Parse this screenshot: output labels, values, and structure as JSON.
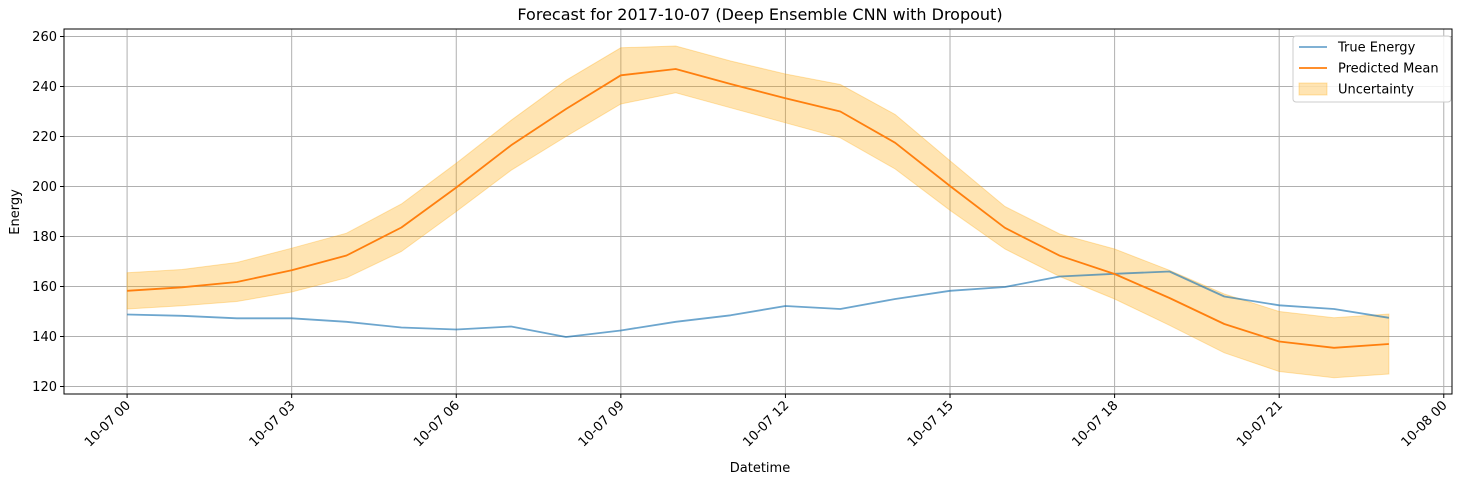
{
  "chart_data": {
    "type": "line",
    "title": "Forecast for 2017-10-07 (Deep Ensemble CNN with Dropout)",
    "xlabel": "Datetime",
    "ylabel": "Energy",
    "x": [
      "2017-10-07 00:00",
      "2017-10-07 01:00",
      "2017-10-07 02:00",
      "2017-10-07 03:00",
      "2017-10-07 04:00",
      "2017-10-07 05:00",
      "2017-10-07 06:00",
      "2017-10-07 07:00",
      "2017-10-07 08:00",
      "2017-10-07 09:00",
      "2017-10-07 10:00",
      "2017-10-07 11:00",
      "2017-10-07 12:00",
      "2017-10-07 13:00",
      "2017-10-07 14:00",
      "2017-10-07 15:00",
      "2017-10-07 16:00",
      "2017-10-07 17:00",
      "2017-10-07 18:00",
      "2017-10-07 19:00",
      "2017-10-07 20:00",
      "2017-10-07 21:00",
      "2017-10-07 22:00",
      "2017-10-07 23:00"
    ],
    "xlim": [
      "2017-10-06 22:51",
      "2017-10-08 00:09"
    ],
    "x_ticks": [
      "10-07 00",
      "10-07 03",
      "10-07 06",
      "10-07 09",
      "10-07 12",
      "10-07 15",
      "10-07 18",
      "10-07 21",
      "10-08 00"
    ],
    "ylim": [
      117,
      263
    ],
    "y_ticks": [
      120,
      140,
      160,
      180,
      200,
      220,
      240,
      260
    ],
    "grid": true,
    "legend_position": "upper-right",
    "series": [
      {
        "name": "True Energy",
        "kind": "line",
        "color": "#1f77b4",
        "values": [
          148.8,
          148.3,
          147.3,
          147.3,
          145.9,
          143.6,
          142.8,
          144.0,
          139.8,
          142.4,
          145.9,
          148.5,
          152.2,
          151.0,
          155.0,
          158.3,
          159.8,
          164.0,
          165.1,
          166.0,
          156.0,
          152.5,
          151.0,
          147.5
        ]
      },
      {
        "name": "Predicted Mean",
        "kind": "line",
        "color": "#ff7f0e",
        "values": [
          158.3,
          159.7,
          161.8,
          166.5,
          172.4,
          183.6,
          199.6,
          216.5,
          231.0,
          244.5,
          247.0,
          241.0,
          235.3,
          230.0,
          217.5,
          200.2,
          183.5,
          172.3,
          165.0,
          155.4,
          145.0,
          138.0,
          135.5,
          137.0
        ]
      },
      {
        "name": "Uncertainty",
        "kind": "band",
        "color": "#ffa500",
        "lower": [
          151.0,
          152.3,
          154.0,
          157.8,
          163.5,
          174.0,
          190.0,
          206.5,
          220.0,
          233.0,
          237.5,
          231.5,
          225.5,
          219.5,
          207.0,
          190.5,
          175.0,
          164.0,
          155.0,
          144.5,
          133.5,
          126.0,
          123.5,
          125.0
        ],
        "upper": [
          165.5,
          166.8,
          169.6,
          175.3,
          181.3,
          193.0,
          209.3,
          226.5,
          242.5,
          255.5,
          256.2,
          250.2,
          245.0,
          240.8,
          228.8,
          210.3,
          192.0,
          181.0,
          175.0,
          166.5,
          157.0,
          150.0,
          147.5,
          149.0
        ]
      }
    ]
  }
}
